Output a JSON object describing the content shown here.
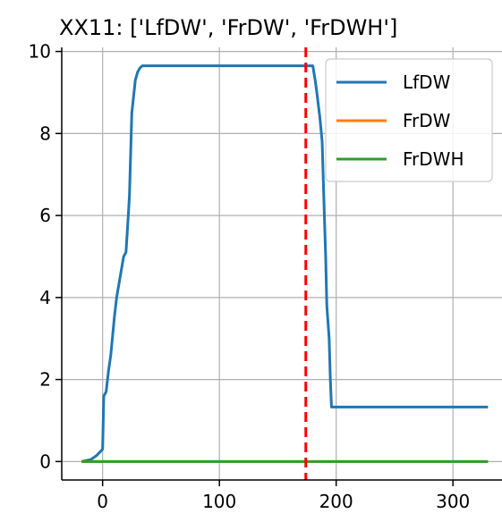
{
  "chart_data": {
    "type": "line",
    "title": "XX11: ['LfDW', 'FrDW', 'FrDWH']",
    "xlabel": "",
    "ylabel": "",
    "xlim": [
      -35,
      342
    ],
    "ylim": [
      -0.45,
      10.1
    ],
    "xticks": [
      0,
      100,
      200,
      300
    ],
    "yticks": [
      0,
      2,
      4,
      6,
      8,
      10
    ],
    "grid": true,
    "legend_position": "top-right",
    "vline": {
      "x": 174,
      "color": "#ff0000",
      "style": "dashed"
    },
    "series": [
      {
        "name": "LfDW",
        "color": "#1f77b4",
        "x": [
          -18,
          -10,
          -5,
          0,
          1,
          3,
          5,
          7,
          10,
          12,
          15,
          18,
          20,
          22,
          23,
          25,
          28,
          30,
          32,
          34,
          37,
          40,
          50,
          100,
          150,
          175,
          180,
          182,
          183,
          186,
          188,
          190,
          191,
          192,
          194,
          195,
          196,
          197,
          200,
          250,
          300,
          330
        ],
        "y": [
          0.0,
          0.05,
          0.15,
          0.3,
          1.6,
          1.7,
          2.2,
          2.6,
          3.5,
          4.0,
          4.5,
          5.0,
          5.1,
          6.0,
          6.5,
          8.5,
          9.3,
          9.5,
          9.6,
          9.65,
          9.65,
          9.65,
          9.65,
          9.65,
          9.65,
          9.65,
          9.65,
          9.3,
          9.1,
          8.4,
          7.8,
          5.9,
          5.0,
          3.8,
          3.0,
          2.0,
          1.33,
          1.33,
          1.33,
          1.33,
          1.33,
          1.33
        ]
      },
      {
        "name": "FrDW",
        "color": "#ff7f0e",
        "x": [
          -18,
          330
        ],
        "y": [
          0,
          0
        ]
      },
      {
        "name": "FrDWH",
        "color": "#2ca02c",
        "x": [
          -18,
          330
        ],
        "y": [
          0,
          0
        ]
      }
    ]
  }
}
